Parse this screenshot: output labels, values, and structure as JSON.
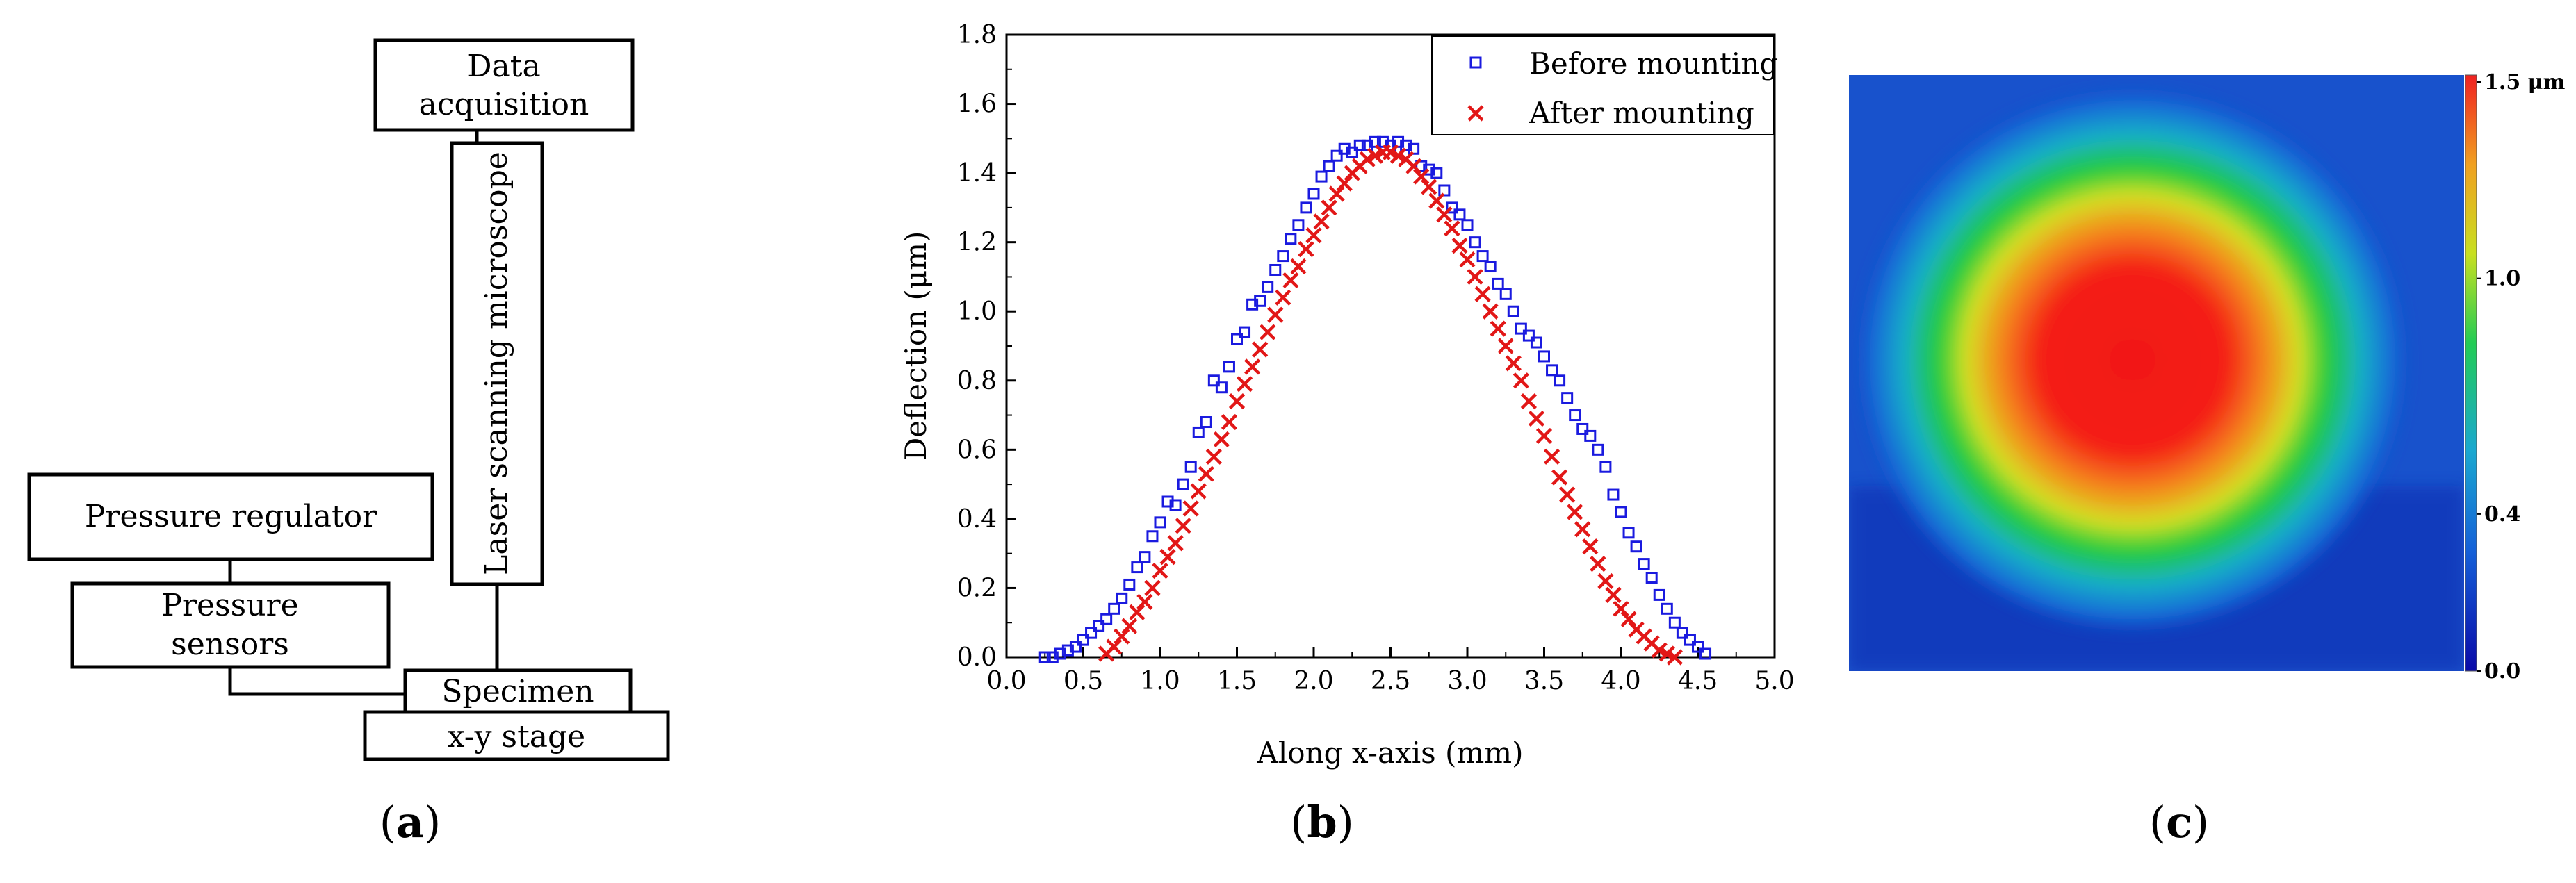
{
  "panel_a": {
    "caption": {
      "open": "(",
      "letter": "a",
      "close": ")"
    },
    "boxes": {
      "data_acquisition": [
        "Data",
        "acquisition"
      ],
      "laser_microscope": "Laser scanning microscope",
      "pressure_regulator": "Pressure regulator",
      "pressure_sensors": [
        "Pressure",
        "sensors"
      ],
      "specimen": "Specimen",
      "xy_stage": "x-y stage"
    }
  },
  "panel_b": {
    "caption": {
      "open": "(",
      "letter": "b",
      "close": ")"
    },
    "chart_data": {
      "type": "scatter",
      "title": "",
      "xlabel": "Along x-axis (mm)",
      "ylabel": "Deflection (μm)",
      "xlim": [
        0.0,
        5.0
      ],
      "ylim": [
        0.0,
        1.8
      ],
      "xticks": [
        "0.0",
        "0.5",
        "1.0",
        "1.5",
        "2.0",
        "2.5",
        "3.0",
        "3.5",
        "4.0",
        "4.5",
        "5.0"
      ],
      "yticks": [
        "0.0",
        "0.2",
        "0.4",
        "0.6",
        "0.8",
        "1.0",
        "1.2",
        "1.4",
        "1.6",
        "1.8"
      ],
      "legend_position": "top-right",
      "series": [
        {
          "name": "Before mounting",
          "marker": "open-square",
          "color": "#1a1adf",
          "x": [
            0.25,
            0.3,
            0.35,
            0.4,
            0.45,
            0.5,
            0.55,
            0.6,
            0.65,
            0.7,
            0.75,
            0.8,
            0.85,
            0.9,
            0.95,
            1.0,
            1.05,
            1.1,
            1.15,
            1.2,
            1.25,
            1.3,
            1.35,
            1.4,
            1.45,
            1.5,
            1.55,
            1.6,
            1.65,
            1.7,
            1.75,
            1.8,
            1.85,
            1.9,
            1.95,
            2.0,
            2.05,
            2.1,
            2.15,
            2.2,
            2.25,
            2.3,
            2.35,
            2.4,
            2.45,
            2.5,
            2.55,
            2.6,
            2.65,
            2.7,
            2.75,
            2.8,
            2.85,
            2.9,
            2.95,
            3.0,
            3.05,
            3.1,
            3.15,
            3.2,
            3.25,
            3.3,
            3.35,
            3.4,
            3.45,
            3.5,
            3.55,
            3.6,
            3.65,
            3.7,
            3.75,
            3.8,
            3.85,
            3.9,
            3.95,
            4.0,
            4.05,
            4.1,
            4.15,
            4.2,
            4.25,
            4.3,
            4.35,
            4.4,
            4.45,
            4.5,
            4.55
          ],
          "y": [
            0.0,
            0.0,
            0.01,
            0.02,
            0.03,
            0.05,
            0.07,
            0.09,
            0.11,
            0.14,
            0.17,
            0.21,
            0.26,
            0.29,
            0.35,
            0.39,
            0.45,
            0.44,
            0.5,
            0.55,
            0.65,
            0.68,
            0.8,
            0.78,
            0.84,
            0.92,
            0.94,
            1.02,
            1.03,
            1.07,
            1.12,
            1.16,
            1.21,
            1.25,
            1.3,
            1.34,
            1.39,
            1.42,
            1.45,
            1.47,
            1.46,
            1.48,
            1.48,
            1.49,
            1.49,
            1.48,
            1.49,
            1.48,
            1.47,
            1.42,
            1.41,
            1.4,
            1.35,
            1.3,
            1.28,
            1.25,
            1.2,
            1.16,
            1.13,
            1.08,
            1.05,
            1.0,
            0.95,
            0.93,
            0.91,
            0.87,
            0.83,
            0.8,
            0.75,
            0.7,
            0.66,
            0.64,
            0.6,
            0.55,
            0.47,
            0.42,
            0.36,
            0.32,
            0.27,
            0.23,
            0.18,
            0.14,
            0.1,
            0.07,
            0.05,
            0.03,
            0.01
          ]
        },
        {
          "name": "After mounting",
          "marker": "x",
          "color": "#e21717",
          "x": [
            0.65,
            0.7,
            0.75,
            0.8,
            0.85,
            0.9,
            0.95,
            1.0,
            1.05,
            1.1,
            1.15,
            1.2,
            1.25,
            1.3,
            1.35,
            1.4,
            1.45,
            1.5,
            1.55,
            1.6,
            1.65,
            1.7,
            1.75,
            1.8,
            1.85,
            1.9,
            1.95,
            2.0,
            2.05,
            2.1,
            2.15,
            2.2,
            2.25,
            2.3,
            2.35,
            2.4,
            2.45,
            2.5,
            2.55,
            2.6,
            2.65,
            2.7,
            2.75,
            2.8,
            2.85,
            2.9,
            2.95,
            3.0,
            3.05,
            3.1,
            3.15,
            3.2,
            3.25,
            3.3,
            3.35,
            3.4,
            3.45,
            3.5,
            3.55,
            3.6,
            3.65,
            3.7,
            3.75,
            3.8,
            3.85,
            3.9,
            3.95,
            4.0,
            4.05,
            4.1,
            4.15,
            4.2,
            4.25,
            4.3,
            4.35
          ],
          "y": [
            0.01,
            0.03,
            0.06,
            0.09,
            0.13,
            0.16,
            0.2,
            0.25,
            0.29,
            0.33,
            0.38,
            0.43,
            0.48,
            0.53,
            0.58,
            0.63,
            0.68,
            0.74,
            0.79,
            0.84,
            0.89,
            0.94,
            0.99,
            1.04,
            1.09,
            1.13,
            1.18,
            1.22,
            1.26,
            1.3,
            1.34,
            1.37,
            1.4,
            1.42,
            1.44,
            1.45,
            1.46,
            1.46,
            1.45,
            1.44,
            1.42,
            1.39,
            1.36,
            1.32,
            1.28,
            1.24,
            1.19,
            1.15,
            1.1,
            1.05,
            1.0,
            0.95,
            0.9,
            0.85,
            0.8,
            0.74,
            0.69,
            0.64,
            0.58,
            0.52,
            0.47,
            0.42,
            0.37,
            0.32,
            0.27,
            0.22,
            0.18,
            0.14,
            0.11,
            0.08,
            0.06,
            0.04,
            0.02,
            0.01,
            0.0
          ]
        }
      ]
    }
  },
  "panel_c": {
    "caption": {
      "open": "(",
      "letter": "c",
      "close": ")"
    },
    "colorbar": {
      "ticks": [
        {
          "label": "1.5 μm",
          "value": 1.5
        },
        {
          "label": "1.0",
          "value": 1.0
        },
        {
          "label": "0.4",
          "value": 0.4
        },
        {
          "label": "0.0",
          "value": 0.0
        }
      ],
      "colors": [
        "#0a0aa8",
        "#1560d8",
        "#1aa8d0",
        "#22cc55",
        "#c8e020",
        "#f0a020",
        "#f02020"
      ]
    }
  }
}
